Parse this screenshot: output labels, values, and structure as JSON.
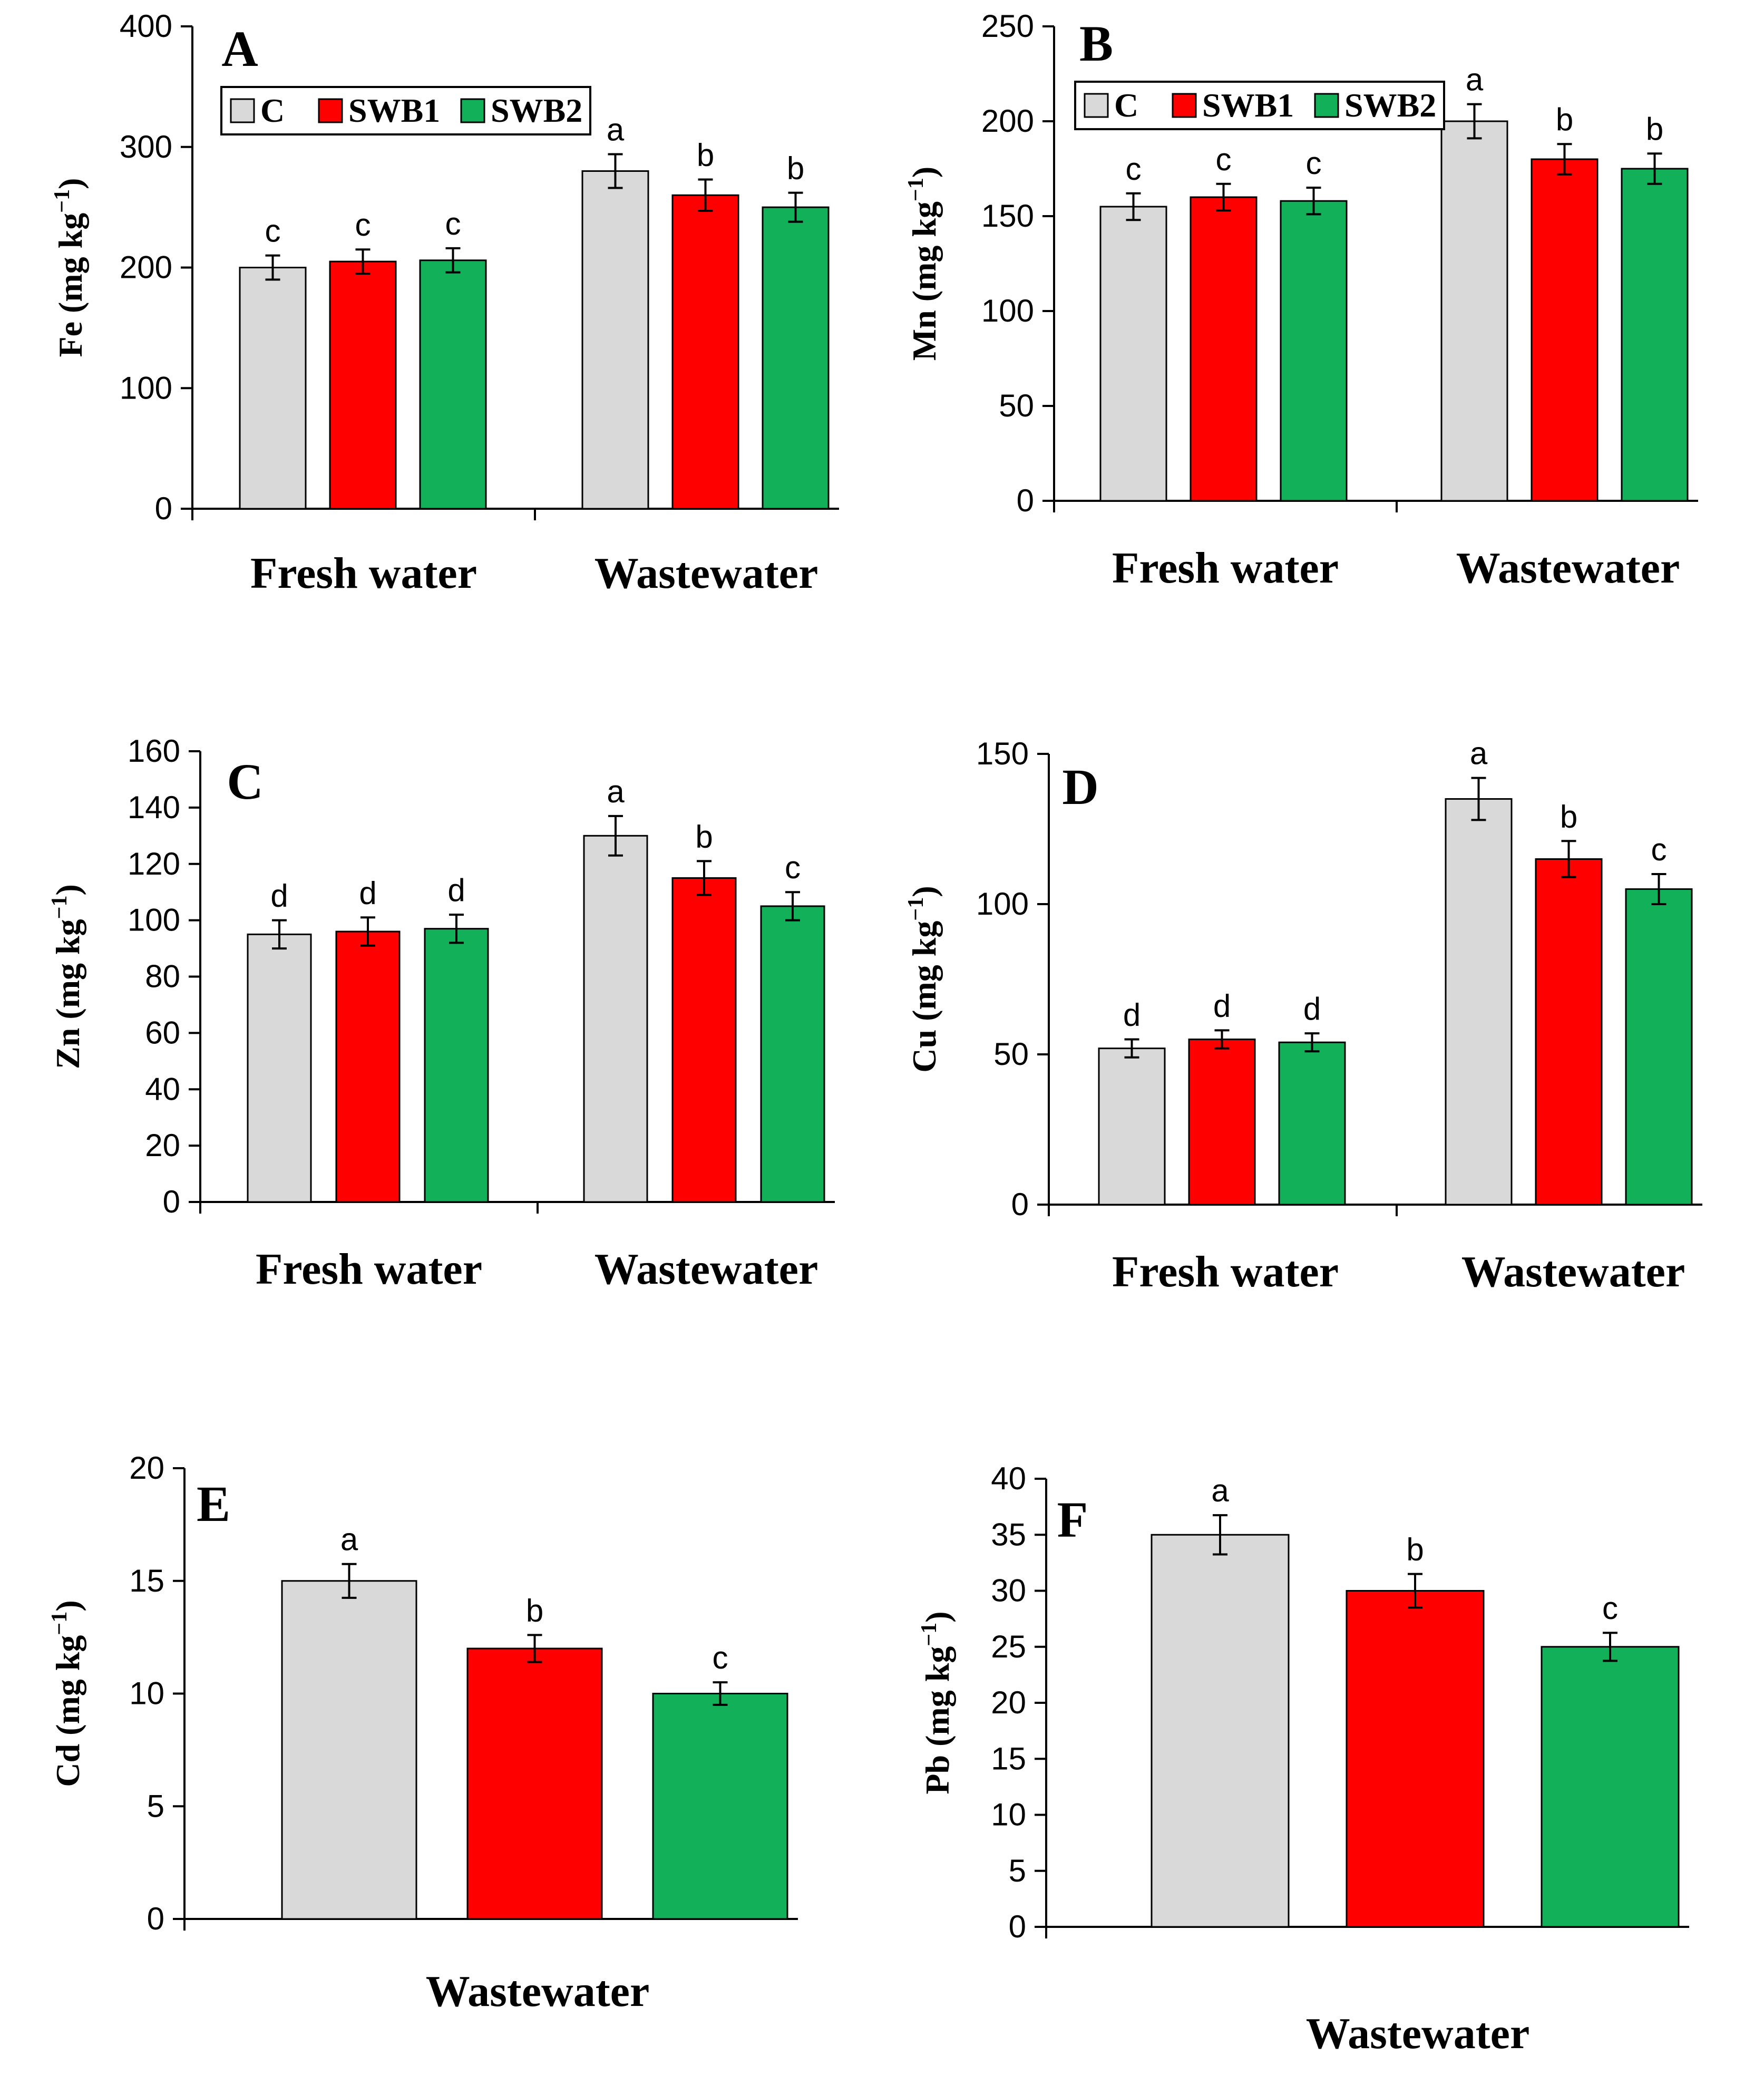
{
  "colors": {
    "C": "#d9d9d9",
    "SWB1": "#ff0000",
    "SWB2": "#12b159",
    "axis": "#000000"
  },
  "chart_data": [
    {
      "type": "bar",
      "panel": "A",
      "ylabel": "Fe (mg kg",
      "yunit_sup": "−1",
      "ylabel_close": ")",
      "ylim": [
        0,
        400
      ],
      "yticks": [
        0,
        100,
        200,
        300,
        400
      ],
      "categories": [
        "Fresh water",
        "Wastewater"
      ],
      "series": [
        {
          "name": "C",
          "values": [
            200,
            280
          ],
          "errors": [
            10,
            14
          ],
          "letters": [
            "c",
            "a"
          ]
        },
        {
          "name": "SWB1",
          "values": [
            205,
            260
          ],
          "errors": [
            10,
            13
          ],
          "letters": [
            "c",
            "b"
          ]
        },
        {
          "name": "SWB2",
          "values": [
            206,
            250
          ],
          "errors": [
            10,
            12
          ],
          "letters": [
            "c",
            "b"
          ]
        }
      ],
      "legend": [
        "C",
        "SWB1",
        "SWB2"
      ]
    },
    {
      "type": "bar",
      "panel": "B",
      "ylabel": "Mn (mg kg",
      "yunit_sup": "−1",
      "ylabel_close": ")",
      "ylim": [
        0,
        250
      ],
      "yticks": [
        0,
        50,
        100,
        150,
        200,
        250
      ],
      "categories": [
        "Fresh water",
        "Wastewater"
      ],
      "series": [
        {
          "name": "C",
          "values": [
            155,
            200
          ],
          "errors": [
            7,
            9
          ],
          "letters": [
            "c",
            "a"
          ]
        },
        {
          "name": "SWB1",
          "values": [
            160,
            180
          ],
          "errors": [
            7,
            8
          ],
          "letters": [
            "c",
            "b"
          ]
        },
        {
          "name": "SWB2",
          "values": [
            158,
            175
          ],
          "errors": [
            7,
            8
          ],
          "letters": [
            "c",
            "b"
          ]
        }
      ],
      "legend": [
        "C",
        "SWB1",
        "SWB2"
      ]
    },
    {
      "type": "bar",
      "panel": "C",
      "ylabel": "Zn (mg kg",
      "yunit_sup": "−1",
      "ylabel_close": ")",
      "ylim": [
        0,
        160
      ],
      "yticks": [
        0,
        20,
        40,
        60,
        80,
        100,
        120,
        140,
        160
      ],
      "categories": [
        "Fresh water",
        "Wastewater"
      ],
      "series": [
        {
          "name": "C",
          "values": [
            95,
            130
          ],
          "errors": [
            5,
            7
          ],
          "letters": [
            "d",
            "a"
          ]
        },
        {
          "name": "SWB1",
          "values": [
            96,
            115
          ],
          "errors": [
            5,
            6
          ],
          "letters": [
            "d",
            "b"
          ]
        },
        {
          "name": "SWB2",
          "values": [
            97,
            105
          ],
          "errors": [
            5,
            5
          ],
          "letters": [
            "d",
            "c"
          ]
        }
      ]
    },
    {
      "type": "bar",
      "panel": "D",
      "ylabel": "Cu (mg kg",
      "yunit_sup": "−1",
      "ylabel_close": ")",
      "ylim": [
        0,
        150
      ],
      "yticks": [
        0,
        50,
        100,
        150
      ],
      "categories": [
        "Fresh water",
        "Wastewater"
      ],
      "series": [
        {
          "name": "C",
          "values": [
            52,
            135
          ],
          "errors": [
            3,
            7
          ],
          "letters": [
            "d",
            "a"
          ]
        },
        {
          "name": "SWB1",
          "values": [
            55,
            115
          ],
          "errors": [
            3,
            6
          ],
          "letters": [
            "d",
            "b"
          ]
        },
        {
          "name": "SWB2",
          "values": [
            54,
            105
          ],
          "errors": [
            3,
            5
          ],
          "letters": [
            "d",
            "c"
          ]
        }
      ]
    },
    {
      "type": "bar",
      "panel": "E",
      "ylabel": "Cd (mg kg",
      "yunit_sup": "−1",
      "ylabel_close": ")",
      "ylim": [
        0,
        20
      ],
      "yticks": [
        0,
        5,
        10,
        15,
        20
      ],
      "categories": [
        "Wastewater"
      ],
      "series": [
        {
          "name": "C",
          "values": [
            15
          ],
          "errors": [
            0.75
          ],
          "letters": [
            "a"
          ]
        },
        {
          "name": "SWB1",
          "values": [
            12
          ],
          "errors": [
            0.6
          ],
          "letters": [
            "b"
          ]
        },
        {
          "name": "SWB2",
          "values": [
            10
          ],
          "errors": [
            0.5
          ],
          "letters": [
            "c"
          ]
        }
      ]
    },
    {
      "type": "bar",
      "panel": "F",
      "ylabel": "Pb (mg kg",
      "yunit_sup": "−1",
      "ylabel_close": ")",
      "ylim": [
        0,
        40
      ],
      "yticks": [
        0,
        5,
        10,
        15,
        20,
        25,
        30,
        35,
        40
      ],
      "categories": [
        "Wastewater"
      ],
      "series": [
        {
          "name": "C",
          "values": [
            35
          ],
          "errors": [
            1.75
          ],
          "letters": [
            "a"
          ]
        },
        {
          "name": "SWB1",
          "values": [
            30
          ],
          "errors": [
            1.5
          ],
          "letters": [
            "b"
          ]
        },
        {
          "name": "SWB2",
          "values": [
            25
          ],
          "errors": [
            1.25
          ],
          "letters": [
            "c"
          ]
        }
      ]
    }
  ]
}
